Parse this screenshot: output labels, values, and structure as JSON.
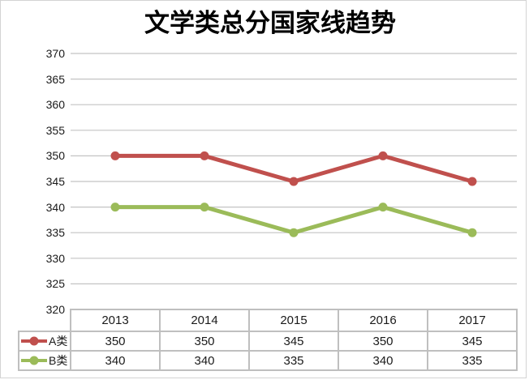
{
  "chart_data": {
    "type": "line",
    "title": "文学类总分国家线趋势",
    "categories": [
      "2013",
      "2014",
      "2015",
      "2016",
      "2017"
    ],
    "series": [
      {
        "name": "A类",
        "values": [
          350,
          350,
          345,
          350,
          345
        ],
        "color": "#C0504D"
      },
      {
        "name": "B类",
        "values": [
          340,
          340,
          335,
          340,
          335
        ],
        "color": "#9BBB59"
      }
    ],
    "xlabel": "",
    "ylabel": "",
    "ylim": [
      320,
      370
    ],
    "ytick_step": 5,
    "yticks": [
      370,
      365,
      360,
      355,
      350,
      345,
      340,
      335,
      330,
      325,
      320
    ],
    "grid": true,
    "legend_position": "data-table-left",
    "colors": {
      "series_a": "#C0504D",
      "series_b": "#9BBB59",
      "gridline": "#C4C4C4",
      "table_border": "#BFBFBF",
      "outer_border": "#D3D3D3",
      "text": "#1A1A1A",
      "background": "#FFFFFF"
    }
  }
}
